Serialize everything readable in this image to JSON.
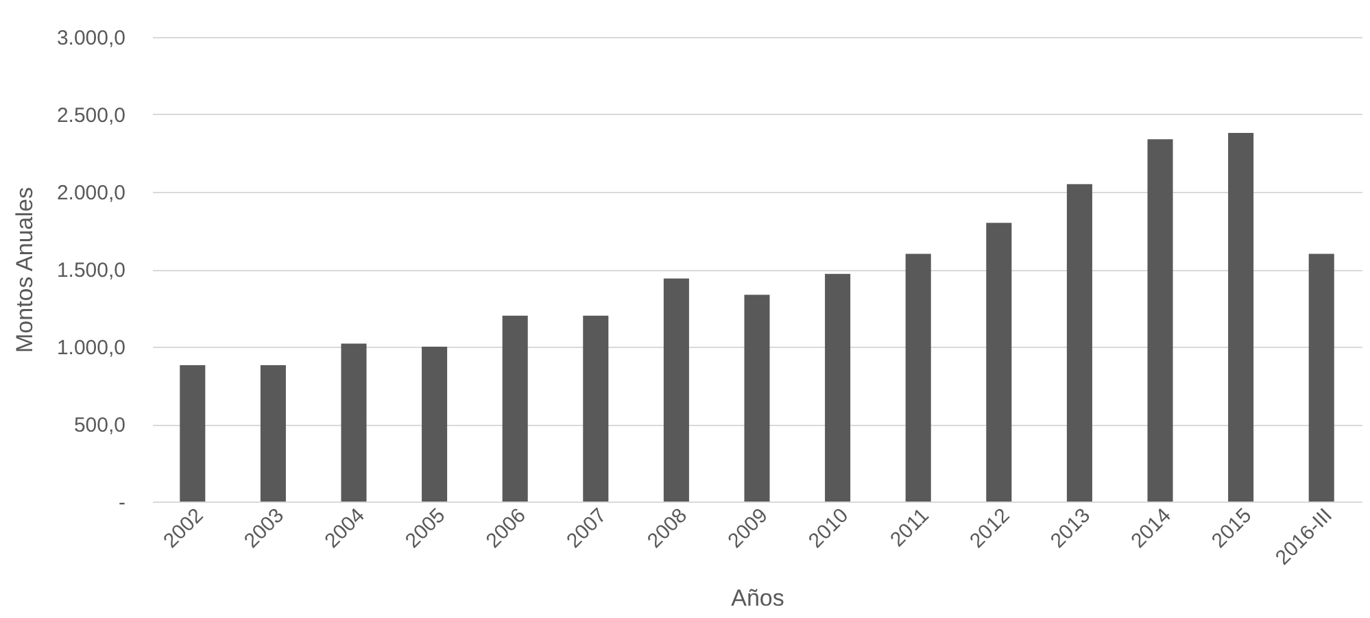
{
  "chart_data": {
    "type": "bar",
    "xlabel": "Años",
    "ylabel": "Montos Anuales",
    "categories": [
      "2002",
      "2003",
      "2004",
      "2005",
      "2006",
      "2007",
      "2008",
      "2009",
      "2010",
      "2011",
      "2012",
      "2013",
      "2014",
      "2015",
      "2016-III"
    ],
    "values": [
      880,
      880,
      1020,
      1000,
      1200,
      1200,
      1440,
      1335,
      1470,
      1600,
      1800,
      2050,
      2340,
      2380,
      1600
    ],
    "color": "#595959",
    "ylim": [
      0,
      3000
    ],
    "yticks": [
      {
        "value": 0,
        "label": "-"
      },
      {
        "value": 500,
        "label": "500,0"
      },
      {
        "value": 1000,
        "label": "1.000,0"
      },
      {
        "value": 1500,
        "label": "1.500,0"
      },
      {
        "value": 2000,
        "label": "2.000,0"
      },
      {
        "value": 2500,
        "label": "2.500,0"
      },
      {
        "value": 3000,
        "label": "3.000,0"
      }
    ],
    "grid": "y"
  }
}
